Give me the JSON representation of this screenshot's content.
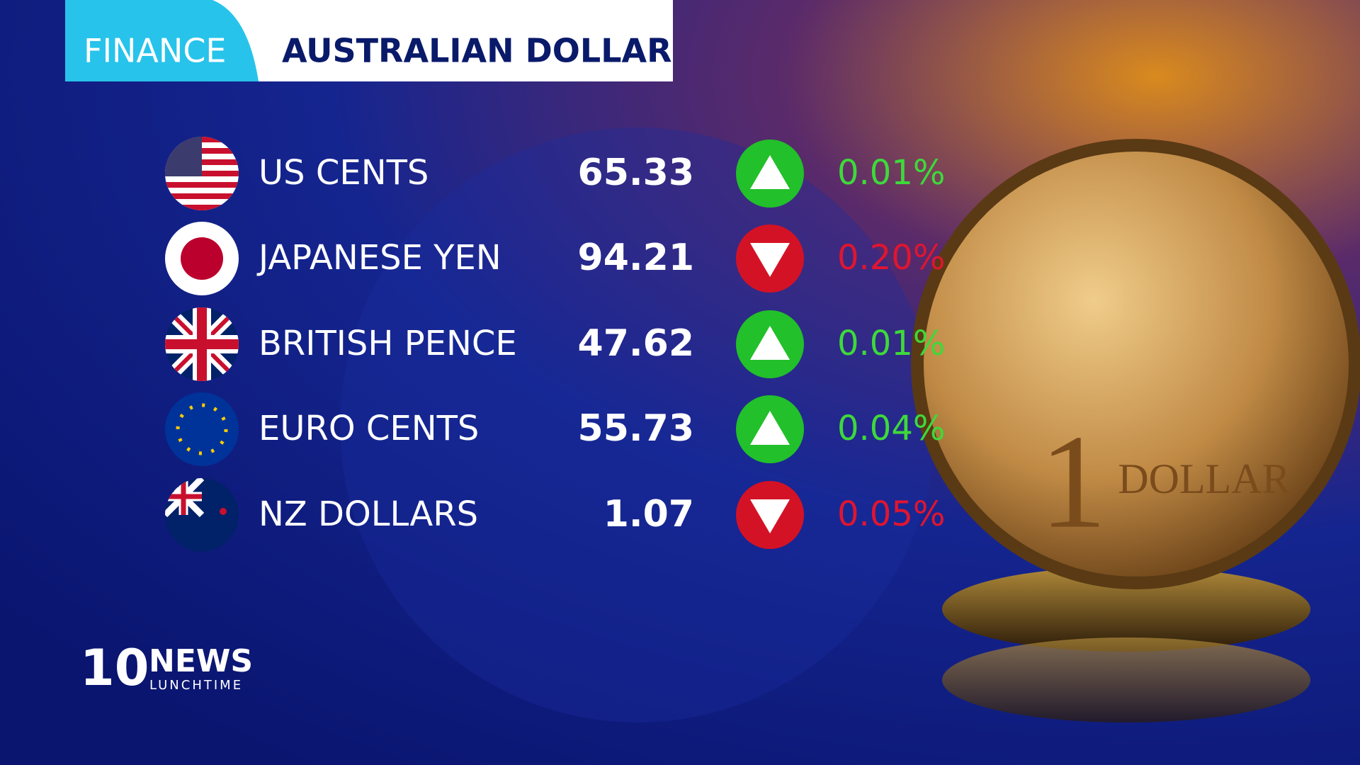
{
  "header": {
    "tag": "FINANCE",
    "title": "AUSTRALIAN DOLLAR"
  },
  "rows": [
    {
      "currency": "US CENTS",
      "value": "65.33",
      "direction": "up",
      "change": "0.01%"
    },
    {
      "currency": "JAPANESE YEN",
      "value": "94.21",
      "direction": "down",
      "change": "0.20%"
    },
    {
      "currency": "BRITISH PENCE",
      "value": "47.62",
      "direction": "up",
      "change": "0.01%"
    },
    {
      "currency": "EURO CENTS",
      "value": "55.73",
      "direction": "up",
      "change": "0.04%"
    },
    {
      "currency": "NZ DOLLARS",
      "value": "1.07",
      "direction": "down",
      "change": "0.05%"
    }
  ],
  "coin": {
    "numeral": "1",
    "word": "DOLLAR"
  },
  "logo": {
    "number": "10",
    "brand": "NEWS",
    "show": "LUNCHTIME"
  }
}
